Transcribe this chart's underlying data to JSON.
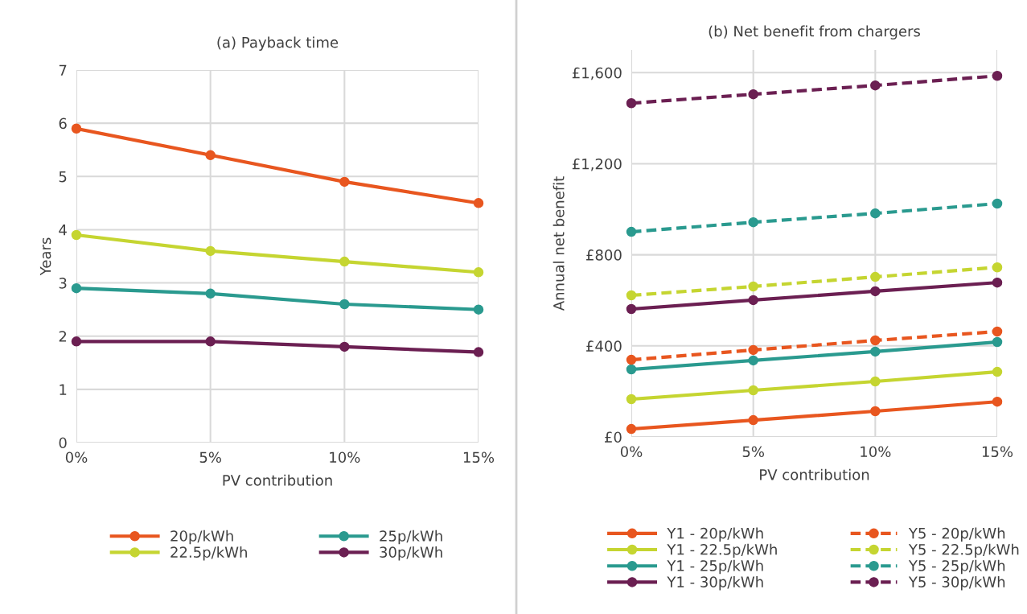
{
  "chart_data": [
    {
      "type": "line",
      "title": "(a) Payback time",
      "xlabel": "PV contribution",
      "ylabel": "Years",
      "categories": [
        "0%",
        "5%",
        "10%",
        "15%"
      ],
      "ylim": [
        0,
        7
      ],
      "yticks": [
        0,
        1,
        2,
        3,
        4,
        5,
        6,
        7
      ],
      "grid": true,
      "legend": "bottom",
      "marker": "circle",
      "line_style": "solid",
      "series": [
        {
          "name": "20p/kWh",
          "color": "#e8561f",
          "values": [
            5.9,
            5.4,
            4.9,
            4.5
          ]
        },
        {
          "name": "22.5p/kWh",
          "color": "#c5d531",
          "values": [
            3.9,
            3.6,
            3.4,
            3.2
          ]
        },
        {
          "name": "25p/kWh",
          "color": "#2a9a8f",
          "values": [
            2.9,
            2.8,
            2.6,
            2.5
          ]
        },
        {
          "name": "30p/kWh",
          "color": "#6b1f52",
          "values": [
            1.9,
            1.9,
            1.8,
            1.7
          ]
        }
      ]
    },
    {
      "type": "line",
      "title": "(b) Net benefit from chargers",
      "xlabel": "PV contribution",
      "ylabel": "Annual net benefit",
      "categories": [
        "0%",
        "5%",
        "10%",
        "15%"
      ],
      "ylim": [
        0,
        1700
      ],
      "yticks": [
        {
          "value": 0,
          "label": "£0"
        },
        {
          "value": 400,
          "label": "£400"
        },
        {
          "value": 800,
          "label": "£800"
        },
        {
          "value": 1200,
          "label": "£1,200"
        },
        {
          "value": 1600,
          "label": "£1,600"
        }
      ],
      "grid": true,
      "legend": "bottom",
      "marker": "circle",
      "series": [
        {
          "name": "Y1 - 20p/kWh",
          "color": "#e8561f",
          "line_style": "solid",
          "values": [
            35,
            74,
            113,
            155
          ]
        },
        {
          "name": "Y1 - 22.5p/kWh",
          "color": "#c5d531",
          "line_style": "solid",
          "values": [
            166,
            205,
            244,
            286
          ]
        },
        {
          "name": "Y1 - 25p/kWh",
          "color": "#2a9a8f",
          "line_style": "solid",
          "values": [
            297,
            336,
            375,
            417
          ]
        },
        {
          "name": "Y1 - 30p/kWh",
          "color": "#6b1f52",
          "line_style": "solid",
          "values": [
            562,
            601,
            640,
            678
          ]
        },
        {
          "name": "Y5 - 20p/kWh",
          "color": "#e8561f",
          "line_style": "dashed",
          "values": [
            339,
            382,
            424,
            463
          ]
        },
        {
          "name": "Y5 - 22.5p/kWh",
          "color": "#c5d531",
          "line_style": "dashed",
          "values": [
            622,
            661,
            703,
            745
          ]
        },
        {
          "name": "Y5 - 25p/kWh",
          "color": "#2a9a8f",
          "line_style": "dashed",
          "values": [
            901,
            943,
            982,
            1025
          ]
        },
        {
          "name": "Y5 - 30p/kWh",
          "color": "#6b1f52",
          "line_style": "dashed",
          "values": [
            1466,
            1505,
            1544,
            1586
          ]
        }
      ]
    }
  ]
}
